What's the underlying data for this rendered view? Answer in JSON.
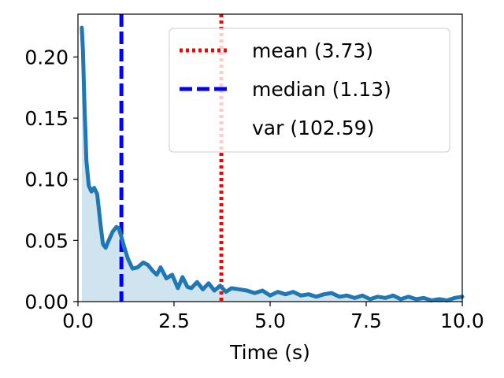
{
  "chart_data": {
    "type": "area",
    "xlabel": "Time (s)",
    "ylabel": "",
    "xlim": [
      0,
      10
    ],
    "ylim": [
      0,
      0.235
    ],
    "x_ticks": [
      "0.0",
      "2.5",
      "5.0",
      "7.5",
      "10.0"
    ],
    "y_ticks": [
      "0.00",
      "0.05",
      "0.10",
      "0.15",
      "0.20"
    ],
    "grid": false,
    "legend_position": "top-right",
    "series": [
      {
        "x": [
          0.1,
          0.13,
          0.17,
          0.22,
          0.28,
          0.35,
          0.42,
          0.5,
          0.58,
          0.65,
          0.72,
          0.8,
          0.9,
          1.0,
          1.06,
          1.12,
          1.2,
          1.3,
          1.42,
          1.55,
          1.7,
          1.82,
          1.95,
          2.05,
          2.15,
          2.3,
          2.45,
          2.6,
          2.72,
          2.85,
          2.95,
          3.1,
          3.25,
          3.4,
          3.55,
          3.7,
          3.85,
          4.0,
          4.2,
          4.4,
          4.6,
          4.8,
          5.0,
          5.2,
          5.4,
          5.6,
          5.8,
          6.0,
          6.2,
          6.4,
          6.6,
          6.8,
          7.0,
          7.2,
          7.4,
          7.6,
          7.8,
          8.0,
          8.2,
          8.4,
          8.6,
          8.8,
          9.0,
          9.2,
          9.4,
          9.6,
          9.8,
          10.0
        ],
        "y": [
          0.224,
          0.205,
          0.16,
          0.115,
          0.095,
          0.09,
          0.093,
          0.088,
          0.065,
          0.047,
          0.044,
          0.05,
          0.057,
          0.061,
          0.06,
          0.054,
          0.045,
          0.035,
          0.027,
          0.028,
          0.032,
          0.03,
          0.025,
          0.022,
          0.028,
          0.019,
          0.022,
          0.011,
          0.02,
          0.012,
          0.011,
          0.016,
          0.01,
          0.015,
          0.009,
          0.013,
          0.008,
          0.011,
          0.01,
          0.009,
          0.007,
          0.009,
          0.005,
          0.008,
          0.006,
          0.008,
          0.005,
          0.006,
          0.004,
          0.006,
          0.007,
          0.004,
          0.005,
          0.003,
          0.005,
          0.002,
          0.004,
          0.003,
          0.005,
          0.002,
          0.004,
          0.002,
          0.003,
          0.001,
          0.002,
          0.001,
          0.003,
          0.004
        ],
        "color": "#1f77b4",
        "fill_color": "#d0e4f0"
      }
    ],
    "vlines": [
      {
        "label": "mean (3.73)",
        "x": 3.73,
        "style": "dotted",
        "color": "#ff0000"
      },
      {
        "label": "median (1.13)",
        "x": 1.13,
        "style": "dashed",
        "color": "#0000ff"
      }
    ],
    "extra_legend": {
      "label": "var (102.59)"
    }
  }
}
